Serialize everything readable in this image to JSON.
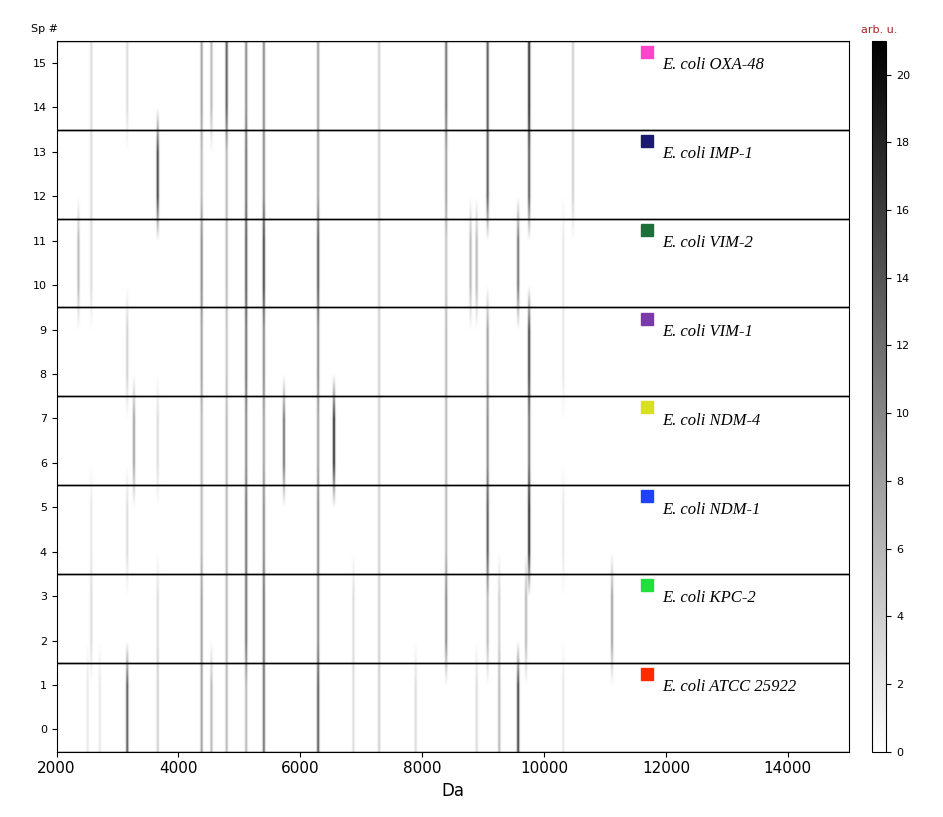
{
  "chart_data": {
    "type": "gel",
    "xlabel": "Da",
    "ylabel": "Sp #",
    "xlim": [
      2000,
      15000
    ],
    "xticks": [
      2000,
      4000,
      6000,
      8000,
      10000,
      12000,
      14000
    ],
    "ylim": [
      -0.5,
      15.5
    ],
    "yticks": [
      0,
      1,
      2,
      3,
      4,
      5,
      6,
      7,
      8,
      9,
      10,
      11,
      12,
      13,
      14,
      15
    ],
    "colorbar": {
      "label": "arb. u.",
      "range": [
        0,
        21
      ],
      "ticks": [
        0,
        2,
        4,
        6,
        8,
        10,
        12,
        14,
        16,
        18,
        20
      ]
    },
    "groups": [
      {
        "name": "E. coli ATCC 25922",
        "color": "#ff2a00",
        "spectra": [
          0,
          1
        ],
        "peaks": [
          [
            2500,
            2
          ],
          [
            2700,
            2
          ],
          [
            3150,
            14
          ],
          [
            3650,
            4
          ],
          [
            4370,
            8
          ],
          [
            4530,
            6
          ],
          [
            4780,
            6
          ],
          [
            5100,
            6
          ],
          [
            5390,
            12
          ],
          [
            6280,
            14
          ],
          [
            6860,
            3
          ],
          [
            7280,
            4
          ],
          [
            7880,
            3
          ],
          [
            8880,
            3
          ],
          [
            9250,
            6
          ],
          [
            9560,
            16
          ],
          [
            10300,
            2
          ]
        ]
      },
      {
        "name": "E. coli KPC-2",
        "color": "#20e040",
        "spectra": [
          2,
          3
        ],
        "peaks": [
          [
            2560,
            3
          ],
          [
            3650,
            3
          ],
          [
            4370,
            8
          ],
          [
            4780,
            6
          ],
          [
            5100,
            12
          ],
          [
            5390,
            12
          ],
          [
            6280,
            10
          ],
          [
            6860,
            3
          ],
          [
            7280,
            4
          ],
          [
            8380,
            10
          ],
          [
            9060,
            6
          ],
          [
            9250,
            4
          ],
          [
            9690,
            6
          ],
          [
            11100,
            8
          ]
        ]
      },
      {
        "name": "E. coli NDM-1",
        "color": "#2040ff",
        "spectra": [
          4,
          5
        ],
        "peaks": [
          [
            2560,
            2
          ],
          [
            3150,
            3
          ],
          [
            4370,
            6
          ],
          [
            4780,
            6
          ],
          [
            5100,
            12
          ],
          [
            5390,
            10
          ],
          [
            6280,
            10
          ],
          [
            7280,
            4
          ],
          [
            8380,
            6
          ],
          [
            9060,
            14
          ],
          [
            9740,
            18
          ],
          [
            10300,
            2
          ]
        ]
      },
      {
        "name": "E. coli NDM-4",
        "color": "#d8e020",
        "spectra": [
          6,
          7
        ],
        "peaks": [
          [
            3260,
            8
          ],
          [
            3650,
            3
          ],
          [
            4370,
            6
          ],
          [
            4780,
            6
          ],
          [
            5100,
            10
          ],
          [
            5390,
            8
          ],
          [
            5720,
            12
          ],
          [
            6280,
            8
          ],
          [
            6540,
            18
          ],
          [
            7280,
            4
          ],
          [
            8380,
            6
          ],
          [
            9060,
            10
          ],
          [
            9740,
            12
          ]
        ]
      },
      {
        "name": "E. coli VIM-1",
        "color": "#7a3aa8",
        "spectra": [
          8,
          9
        ],
        "peaks": [
          [
            3150,
            4
          ],
          [
            4370,
            8
          ],
          [
            4780,
            5
          ],
          [
            5100,
            12
          ],
          [
            5390,
            10
          ],
          [
            6280,
            10
          ],
          [
            7280,
            4
          ],
          [
            8380,
            6
          ],
          [
            9060,
            8
          ],
          [
            9740,
            16
          ],
          [
            10300,
            2
          ]
        ]
      },
      {
        "name": "E. coli VIM-2",
        "color": "#1e6e3a",
        "spectra": [
          10,
          11
        ],
        "peaks": [
          [
            2350,
            6
          ],
          [
            2560,
            3
          ],
          [
            4370,
            10
          ],
          [
            4780,
            6
          ],
          [
            5100,
            14
          ],
          [
            5390,
            16
          ],
          [
            6280,
            14
          ],
          [
            7280,
            4
          ],
          [
            8380,
            5
          ],
          [
            8780,
            6
          ],
          [
            8880,
            6
          ],
          [
            9560,
            12
          ],
          [
            10300,
            2
          ]
        ]
      },
      {
        "name": "E. coli IMP-1",
        "color": "#1a1a6e",
        "spectra": [
          12,
          13
        ],
        "peaks": [
          [
            2560,
            3
          ],
          [
            3650,
            16
          ],
          [
            4370,
            6
          ],
          [
            4780,
            6
          ],
          [
            5100,
            12
          ],
          [
            5390,
            10
          ],
          [
            6280,
            8
          ],
          [
            7280,
            4
          ],
          [
            8380,
            8
          ],
          [
            9060,
            14
          ],
          [
            9740,
            14
          ],
          [
            10460,
            4
          ]
        ]
      },
      {
        "name": "E. coli OXA-48",
        "color": "#ff44cc",
        "spectra": [
          14,
          15
        ],
        "peaks": [
          [
            2560,
            3
          ],
          [
            3150,
            3
          ],
          [
            4370,
            8
          ],
          [
            4530,
            6
          ],
          [
            4780,
            14
          ],
          [
            5100,
            10
          ],
          [
            5390,
            10
          ],
          [
            6280,
            8
          ],
          [
            7280,
            4
          ],
          [
            8380,
            12
          ],
          [
            9060,
            14
          ],
          [
            9740,
            18
          ],
          [
            10460,
            4
          ]
        ]
      }
    ]
  }
}
